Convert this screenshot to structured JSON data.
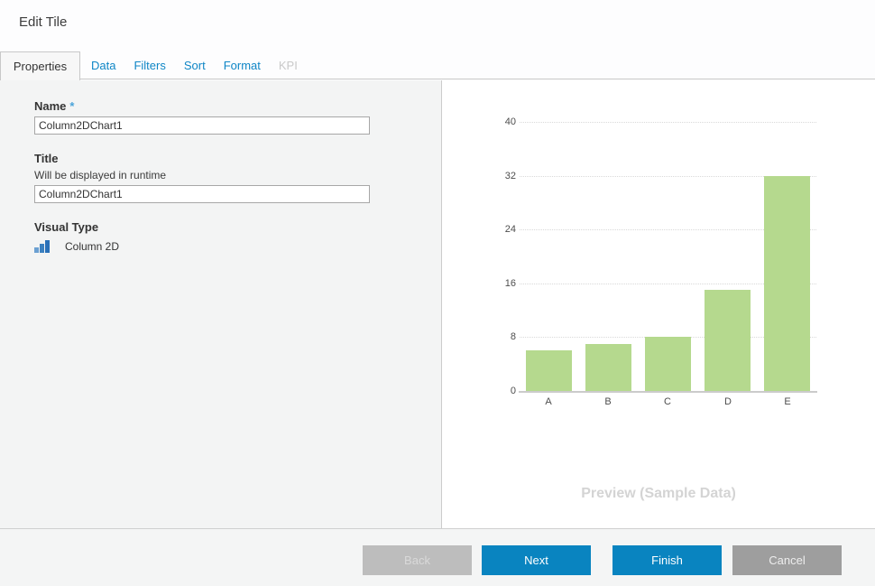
{
  "window": {
    "title": "Edit Tile"
  },
  "tabs": [
    {
      "label": "Properties",
      "state": "active"
    },
    {
      "label": "Data",
      "state": "enabled"
    },
    {
      "label": "Filters",
      "state": "enabled"
    },
    {
      "label": "Sort",
      "state": "enabled"
    },
    {
      "label": "Format",
      "state": "enabled"
    },
    {
      "label": "KPI",
      "state": "disabled"
    }
  ],
  "properties_panel": {
    "name_label": "Name",
    "required_marker": "*",
    "name_value": "Column2DChart1",
    "title_label": "Title",
    "title_hint": "Will be displayed in runtime",
    "title_value": "Column2DChart1",
    "visual_type_label": "Visual Type",
    "visual_type_value": "Column 2D",
    "visual_type_icon": "column-chart-icon"
  },
  "preview": {
    "caption": "Preview (Sample Data)"
  },
  "chart_data": {
    "type": "bar",
    "categories": [
      "A",
      "B",
      "C",
      "D",
      "E"
    ],
    "values": [
      6,
      7,
      8,
      15,
      32
    ],
    "title": "",
    "xlabel": "",
    "ylabel": "",
    "ylim": [
      0,
      40
    ],
    "yticks": [
      0,
      8,
      16,
      24,
      32,
      40
    ],
    "grid": "dotted-horizontal",
    "legend": "none",
    "bar_color": "#b5d98e"
  },
  "footer": {
    "buttons": [
      {
        "label": "Back",
        "state": "disabled",
        "style": "gray-light"
      },
      {
        "label": "Next",
        "state": "enabled",
        "style": "primary"
      },
      {
        "label": "Finish",
        "state": "enabled",
        "style": "primary"
      },
      {
        "label": "Cancel",
        "state": "enabled",
        "style": "gray"
      }
    ]
  },
  "colors": {
    "accent_blue": "#0984c0",
    "tab_link_blue": "#0f86c6",
    "bar_green": "#b5d98e",
    "panel_gray": "#f3f4f4",
    "disabled_button_gray": "#bdbdbd",
    "cancel_button_gray": "#9e9e9e",
    "required_marker_blue": "#49a3d9"
  }
}
